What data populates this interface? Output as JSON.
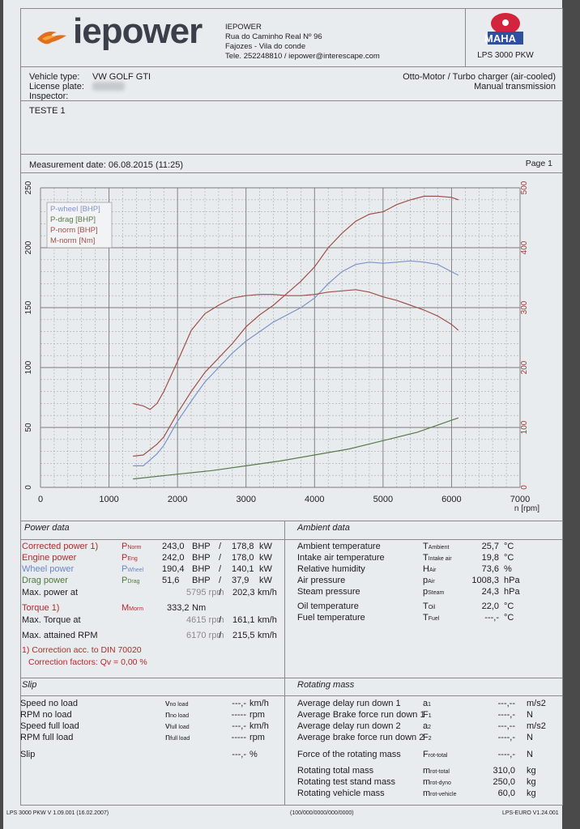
{
  "header": {
    "brand": "iepower",
    "company": [
      "IEPOWER",
      "Rua do Caminho Real Nº 96",
      "Fajozes - Vila do conde",
      "Tele. 252248810 / iepower@interescape.com"
    ],
    "maha_label": "MAHA",
    "model": "LPS 3000 PKW"
  },
  "vehicle": {
    "type_label": "Vehicle type:",
    "type_value": "VW GOLF GTI",
    "plate_label": "License plate:",
    "inspector_label": "Inspector:",
    "engine": "Otto-Motor / Turbo charger (air-cooled)",
    "transmission": "Manual transmission",
    "test_name": "TESTE 1"
  },
  "measurement": {
    "label": "Measurement date: 06.08.2015 (11:25)",
    "page": "Page 1"
  },
  "chart_data": {
    "type": "line",
    "xlabel": "n [rpm]",
    "xlim": [
      0,
      7000
    ],
    "ylim_left": [
      0,
      250
    ],
    "ylim_right": [
      0,
      500
    ],
    "x_ticks": [
      "0",
      "1000",
      "2000",
      "3000",
      "4000",
      "5000",
      "6000",
      "7000"
    ],
    "y_ticks_left": [
      "0",
      "50",
      "100",
      "150",
      "200",
      "250"
    ],
    "y_ticks_right": [
      "0",
      "100",
      "200",
      "300",
      "400",
      "500"
    ],
    "grid": true,
    "legend_position": "top-left",
    "legend": [
      "P-wheel [BHP]",
      "P-drag [BHP]",
      "P-norm [BHP]",
      "M-norm [Nm]"
    ],
    "series": [
      {
        "name": "P-wheel [BHP]",
        "color": "#7d93c8",
        "axis": "left",
        "x": [
          1350,
          1500,
          1700,
          1800,
          2000,
          2200,
          2400,
          2600,
          2800,
          3000,
          3200,
          3400,
          3600,
          3800,
          4000,
          4200,
          4400,
          4600,
          4800,
          5000,
          5200,
          5400,
          5600,
          5800,
          6000,
          6100
        ],
        "y": [
          18,
          18,
          28,
          35,
          55,
          72,
          88,
          100,
          112,
          122,
          130,
          138,
          144,
          150,
          158,
          170,
          180,
          186,
          188,
          187,
          188,
          189,
          188,
          186,
          180,
          177
        ]
      },
      {
        "name": "P-drag [BHP]",
        "color": "#5a7a4a",
        "axis": "left",
        "x": [
          1350,
          2000,
          2500,
          3000,
          3500,
          4000,
          4500,
          5000,
          5500,
          6000,
          6100
        ],
        "y": [
          7,
          11,
          14,
          18,
          22,
          27,
          32,
          39,
          46,
          56,
          58
        ]
      },
      {
        "name": "P-norm [BHP]",
        "color": "#a0504a",
        "axis": "left",
        "x": [
          1350,
          1500,
          1700,
          1800,
          2000,
          2200,
          2400,
          2600,
          2800,
          3000,
          3200,
          3400,
          3600,
          3800,
          4000,
          4200,
          4400,
          4600,
          4800,
          5000,
          5200,
          5400,
          5600,
          5800,
          6000,
          6100
        ],
        "y": [
          26,
          27,
          36,
          42,
          62,
          80,
          96,
          108,
          120,
          134,
          144,
          152,
          162,
          172,
          184,
          200,
          212,
          222,
          228,
          230,
          236,
          240,
          243,
          243,
          242,
          240
        ]
      },
      {
        "name": "M-norm [Nm]",
        "color": "#a0504a",
        "axis": "right",
        "x": [
          1350,
          1500,
          1600,
          1700,
          1800,
          2000,
          2200,
          2400,
          2600,
          2800,
          3000,
          3200,
          3400,
          3600,
          3800,
          4000,
          4200,
          4400,
          4600,
          4800,
          5000,
          5200,
          5400,
          5600,
          5800,
          6000,
          6100
        ],
        "y": [
          140,
          136,
          130,
          140,
          160,
          210,
          262,
          290,
          304,
          316,
          320,
          322,
          322,
          320,
          320,
          322,
          326,
          328,
          330,
          326,
          318,
          312,
          304,
          296,
          286,
          272,
          262
        ]
      }
    ]
  },
  "power": {
    "title": "Power data",
    "rows": [
      {
        "label": "Corrected power 1)",
        "sym": "P",
        "sub": "Norm",
        "v1": "243,0",
        "u1": "BHP",
        "sep": "/",
        "v2": "178,8",
        "u2": "kW",
        "cls": "red"
      },
      {
        "label": "Engine power",
        "sym": "P",
        "sub": "Eng",
        "v1": "242,0",
        "u1": "BHP",
        "sep": "/",
        "v2": "178,0",
        "u2": "kW",
        "cls": "red"
      },
      {
        "label": "Wheel power",
        "sym": "P",
        "sub": "Wheel",
        "v1": "190,4",
        "u1": "BHP",
        "sep": "/",
        "v2": "140,1",
        "u2": "kW",
        "cls": "blue"
      },
      {
        "label": "Drag power",
        "sym": "P",
        "sub": "Drag",
        "v1": "51,6",
        "u1": "BHP",
        "sep": "/",
        "v2": "37,9",
        "u2": "kW",
        "cls": "green"
      }
    ],
    "maxpower_label": "Max. power at",
    "maxpower_rpm": "5795",
    "rpm_unit": "rpm",
    "maxpower_speed": "202,3",
    "speed_unit": "km/h",
    "torque_label": "Torque 1)",
    "torque_sym": "M",
    "torque_sub": "Morm",
    "torque_value": "333,2",
    "torque_unit": "Nm",
    "maxtorque_label": "Max. Torque at",
    "maxtorque_rpm": "4615",
    "maxtorque_speed": "161,1",
    "maxrpm_label": "Max. attained RPM",
    "maxrpm_rpm": "6170",
    "maxrpm_speed": "215,5",
    "footnote1": "1) Correction acc. to DIN 70020",
    "footnote2": "Correction factors: Qv =   0,00 %"
  },
  "ambient": {
    "title": "Ambient data",
    "rows": [
      {
        "label": "Ambient temperature",
        "sym": "T",
        "sub": "Ambient",
        "value": "25,7",
        "unit": "°C"
      },
      {
        "label": "Intake air temperature",
        "sym": "T",
        "sub": "Intake air",
        "value": "19,8",
        "unit": "°C"
      },
      {
        "label": "Relative humidity",
        "sym": "H",
        "sub": "Air",
        "value": "73,6",
        "unit": "%"
      },
      {
        "label": "Air pressure",
        "sym": "p",
        "sub": "Air",
        "value": "1008,3",
        "unit": "hPa"
      },
      {
        "label": "Steam pressure",
        "sym": "p",
        "sub": "Steam",
        "value": "24,3",
        "unit": "hPa"
      },
      {
        "label": "Oil temperature",
        "sym": "T",
        "sub": "Oil",
        "value": "22,0",
        "unit": "°C"
      },
      {
        "label": "Fuel temperature",
        "sym": "T",
        "sub": "Fuel",
        "value": "---,-",
        "unit": "°C"
      }
    ]
  },
  "slip": {
    "title": "Slip",
    "rows": [
      {
        "label": "Speed no load",
        "sym": "v",
        "sub": "no load",
        "value": "---,-",
        "unit": "km/h"
      },
      {
        "label": "RPM no load",
        "sym": "n",
        "sub": "no load",
        "value": "-----",
        "unit": "rpm"
      },
      {
        "label": "Speed full load",
        "sym": "v",
        "sub": "full load",
        "value": "---,-",
        "unit": "km/h"
      },
      {
        "label": "RPM full load",
        "sym": "n",
        "sub": "full load",
        "value": "-----",
        "unit": "rpm"
      },
      {
        "label": "Slip",
        "sym": "",
        "sub": "",
        "value": "---,-",
        "unit": "%"
      }
    ]
  },
  "rotating": {
    "title": "Rotating mass",
    "rows": [
      {
        "label": "Average delay run down 1",
        "sym": "a",
        "sub": "1",
        "value": "---,--",
        "unit": "m/s2"
      },
      {
        "label": "Average Brake force run down 1",
        "sym": "F",
        "sub": "1",
        "value": "----,-",
        "unit": "N"
      },
      {
        "label": "Average delay run down 2",
        "sym": "a",
        "sub": "2",
        "value": "---,--",
        "unit": "m/s2"
      },
      {
        "label": "Average brake force run down 2",
        "sym": "F",
        "sub": "2",
        "value": "----,-",
        "unit": "N"
      },
      {
        "label": "Force of the rotating mass",
        "sym": "F",
        "sub": "rot-total",
        "value": "----,-",
        "unit": "N"
      },
      {
        "label": "Rotating total mass",
        "sym": "m",
        "sub": "rot-total",
        "value": "310,0",
        "unit": "kg"
      },
      {
        "label": "Rotating test stand mass",
        "sym": "m",
        "sub": "rot-dyno",
        "value": "250,0",
        "unit": "kg"
      },
      {
        "label": "Rotating vehicle mass",
        "sym": "m",
        "sub": "rot-vehicle",
        "value": "60,0",
        "unit": "kg"
      }
    ]
  },
  "footer": {
    "left": "LPS 3000 PKW V 1.09.001 (16.02.2007)",
    "center": "(100/000/0000/000/0000)",
    "right": "LPS-EURO V1.24.001"
  }
}
